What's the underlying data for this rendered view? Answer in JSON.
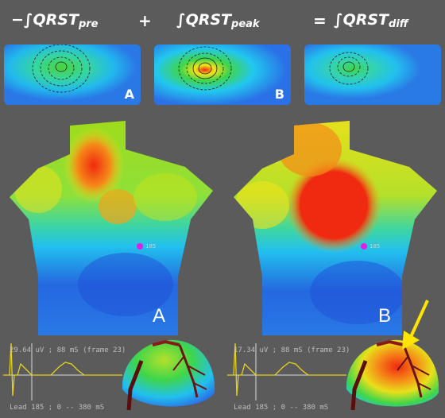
{
  "equation": {
    "term1_prefix": "−∫QRST",
    "term1_sub": "pre",
    "plus": "+",
    "term2_prefix": "∫QRST",
    "term2_sub": "peak",
    "equals": "=",
    "term3_prefix": "∫QRST",
    "term3_sub": "diff"
  },
  "maps": [
    {
      "label": "A"
    },
    {
      "label": "B"
    },
    {
      "label": ""
    }
  ],
  "torsos": [
    {
      "label": "A",
      "electrode": "185"
    },
    {
      "label": "B",
      "electrode": "185"
    }
  ],
  "leads": [
    {
      "readout": "29.64 uV ; 88 mS (frame 23)",
      "range": "Lead 185 ; 0 -- 380 mS"
    },
    {
      "readout": "17.34 uV ; 88 mS (frame 23)",
      "range": "Lead 185 ; 0 -- 380 mS"
    }
  ],
  "colors": {
    "background": "#5b5b5b",
    "blue": "#1f5fe0",
    "cyan": "#22c7f0",
    "green": "#3fd64a",
    "yellow": "#f2e21a",
    "red": "#f02a10",
    "arrow": "#ffe400",
    "electrode": "#e01ee6"
  }
}
